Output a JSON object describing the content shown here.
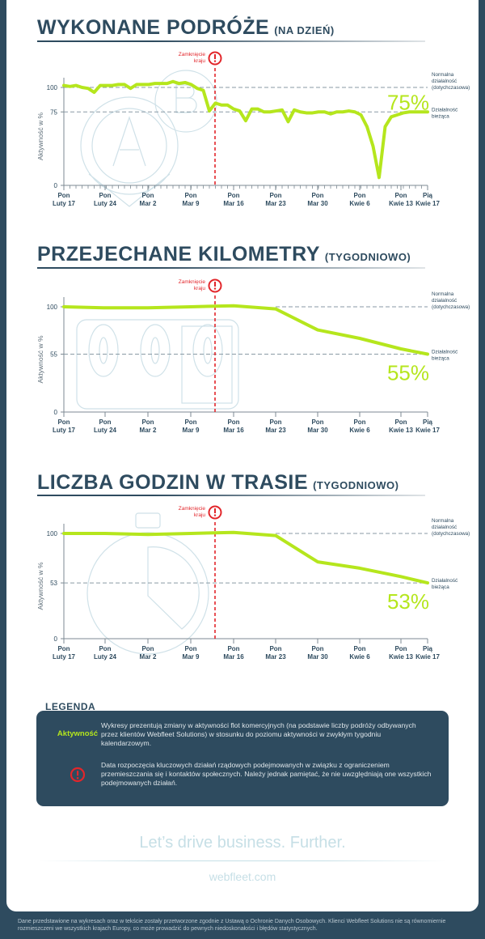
{
  "colors": {
    "background": "#2e4b5f",
    "accent_line": "#b5e61d",
    "lockdown_red": "#e2262b",
    "title": "#2e4b5f",
    "reference_line": "#8a9aa5"
  },
  "common": {
    "ylabel": "Aktywność w %",
    "lockdown_label_line1": "Zamknięcie",
    "lockdown_label_line2": "kraju",
    "normal_label": [
      "Normalna",
      "działalność",
      "(dotychczasowa)"
    ],
    "current_label": [
      "Działalność",
      "bieżąca"
    ],
    "x_ticks": [
      {
        "top": "Pon",
        "bottom": "Luty 17"
      },
      {
        "top": "Pon",
        "bottom": "Luty 24"
      },
      {
        "top": "Pon",
        "bottom": "Mar 2"
      },
      {
        "top": "Pon",
        "bottom": "Mar 9"
      },
      {
        "top": "Pon",
        "bottom": "Mar 16"
      },
      {
        "top": "Pon",
        "bottom": "Mar 23"
      },
      {
        "top": "Pon",
        "bottom": "Mar 30"
      },
      {
        "top": "Pon",
        "bottom": "Kwie 6"
      },
      {
        "top": "Pon",
        "bottom": "Kwie 13"
      },
      {
        "top": "Pią",
        "bottom": "Kwie 17"
      }
    ]
  },
  "chart_data": [
    {
      "type": "line",
      "title": "WYKONANE PODRÓŻE",
      "subtitle": "(NA DZIEŃ)",
      "xlabel": "",
      "ylabel": "Aktywność w %",
      "yticks": [
        0,
        75,
        100
      ],
      "ylim": [
        0,
        110
      ],
      "grid": false,
      "reference_lines": [
        {
          "value": 100,
          "label": "Normalna działalność (dotychczasowa)"
        },
        {
          "value": 75,
          "label": "Działalność bieżąca"
        }
      ],
      "annotation_value": "75%",
      "lockdown_marker": {
        "between": [
          "Mar 9",
          "Mar 16"
        ],
        "label": "Zamknięcie kraju"
      },
      "categories": [
        "Luty 17",
        "Luty 18",
        "Luty 19",
        "Luty 20",
        "Luty 21",
        "Luty 22",
        "Luty 23",
        "Luty 24",
        "Luty 25",
        "Luty 26",
        "Luty 27",
        "Luty 28",
        "Luty 29",
        "Mar 1",
        "Mar 2",
        "Mar 3",
        "Mar 4",
        "Mar 5",
        "Mar 6",
        "Mar 7",
        "Mar 8",
        "Mar 9",
        "Mar 10",
        "Mar 11",
        "Mar 12",
        "Mar 13",
        "Mar 14",
        "Mar 15",
        "Mar 16",
        "Mar 17",
        "Mar 18",
        "Mar 19",
        "Mar 20",
        "Mar 21",
        "Mar 22",
        "Mar 23",
        "Mar 24",
        "Mar 25",
        "Mar 26",
        "Mar 27",
        "Mar 28",
        "Mar 29",
        "Mar 30",
        "Mar 31",
        "Kwie 1",
        "Kwie 2",
        "Kwie 3",
        "Kwie 4",
        "Kwie 5",
        "Kwie 6",
        "Kwie 7",
        "Kwie 8",
        "Kwie 9",
        "Kwie 10",
        "Kwie 11",
        "Kwie 12",
        "Kwie 13",
        "Kwie 14",
        "Kwie 15",
        "Kwie 16",
        "Kwie 17"
      ],
      "series": [
        {
          "name": "Aktywność",
          "values": [
            102,
            101,
            102,
            100,
            99,
            95,
            102,
            102,
            102,
            103,
            103,
            99,
            103,
            103,
            103,
            104,
            104,
            104,
            106,
            104,
            105,
            103,
            99,
            97,
            76,
            84,
            82,
            82,
            78,
            76,
            66,
            78,
            78,
            75,
            75,
            76,
            77,
            65,
            77,
            75,
            74,
            74,
            75,
            75,
            73,
            75,
            75,
            76,
            75,
            72,
            60,
            40,
            8,
            60,
            70,
            72,
            74,
            75,
            75,
            75,
            75
          ]
        }
      ]
    },
    {
      "type": "line",
      "title": "PRZEJECHANE KILOMETRY",
      "subtitle": "(TYGODNIOWO)",
      "xlabel": "",
      "ylabel": "Aktywność w %",
      "yticks": [
        0,
        55,
        100
      ],
      "ylim": [
        0,
        105
      ],
      "grid": false,
      "reference_lines": [
        {
          "value": 100,
          "label": "Normalna działalność (dotychczasowa)"
        },
        {
          "value": 55,
          "label": "Działalność bieżąca"
        }
      ],
      "annotation_value": "55%",
      "lockdown_marker": {
        "between": [
          "Mar 9",
          "Mar 16"
        ],
        "label": "Zamknięcie kraju"
      },
      "categories": [
        "Luty 17",
        "Luty 24",
        "Mar 2",
        "Mar 9",
        "Mar 16",
        "Mar 23",
        "Mar 30",
        "Kwie 6",
        "Kwie 13",
        "Kwie 17"
      ],
      "series": [
        {
          "name": "Aktywność",
          "values": [
            100,
            99,
            99,
            100,
            101,
            98,
            78,
            70,
            60,
            55
          ]
        }
      ]
    },
    {
      "type": "line",
      "title": "LICZBA GODZIN W TRASIE",
      "subtitle": "(TYGODNIOWO)",
      "xlabel": "",
      "ylabel": "Aktywność w %",
      "yticks": [
        0,
        53,
        100
      ],
      "ylim": [
        0,
        105
      ],
      "grid": false,
      "reference_lines": [
        {
          "value": 100,
          "label": "Normalna działalność (dotychczasowa)"
        },
        {
          "value": 53,
          "label": "Działalność bieżąca"
        }
      ],
      "annotation_value": "53%",
      "lockdown_marker": {
        "between": [
          "Mar 9",
          "Mar 16"
        ],
        "label": "Zamknięcie kraju"
      },
      "categories": [
        "Luty 17",
        "Luty 24",
        "Mar 2",
        "Mar 9",
        "Mar 16",
        "Mar 23",
        "Mar 30",
        "Kwie 6",
        "Kwie 13",
        "Kwie 17"
      ],
      "series": [
        {
          "name": "Aktywność",
          "values": [
            100,
            100,
            99,
            100,
            101,
            98,
            73,
            67,
            59,
            53
          ]
        }
      ]
    }
  ],
  "legend": {
    "title": "LEGENDA",
    "items": [
      {
        "key": "Aktywność",
        "text": "Wykresy prezentują zmiany w aktywności flot komercyjnych (na podstawie liczby podróży odbywanych przez klientów Webfleet Solutions) w stosunku do poziomu aktywności w zwykłym tygodniu kalendarzowym."
      },
      {
        "key_icon": "alert-circle-icon",
        "text": "Data rozpoczęcia kluczowych działań rządowych podejmowanych w związku z ograniczeniem przemieszczania się i kontaktów społecznych. Należy jednak pamiętać, że nie uwzględniają one wszystkich podejmowanych działań."
      }
    ]
  },
  "footer": {
    "slogan": "Let’s drive business. Further.",
    "website": "webfleet.com",
    "disclaimer": "Dane przedstawione na wykresach oraz w tekście zostały przetworzone zgodnie z Ustawą o Ochronie Danych Osobowych. Klienci Webfleet Solutions nie są równomiernie rozmieszczeni we wszystkich krajach Europy, co może prowadzić do pewnych niedoskonałości i błędów statystycznych."
  }
}
